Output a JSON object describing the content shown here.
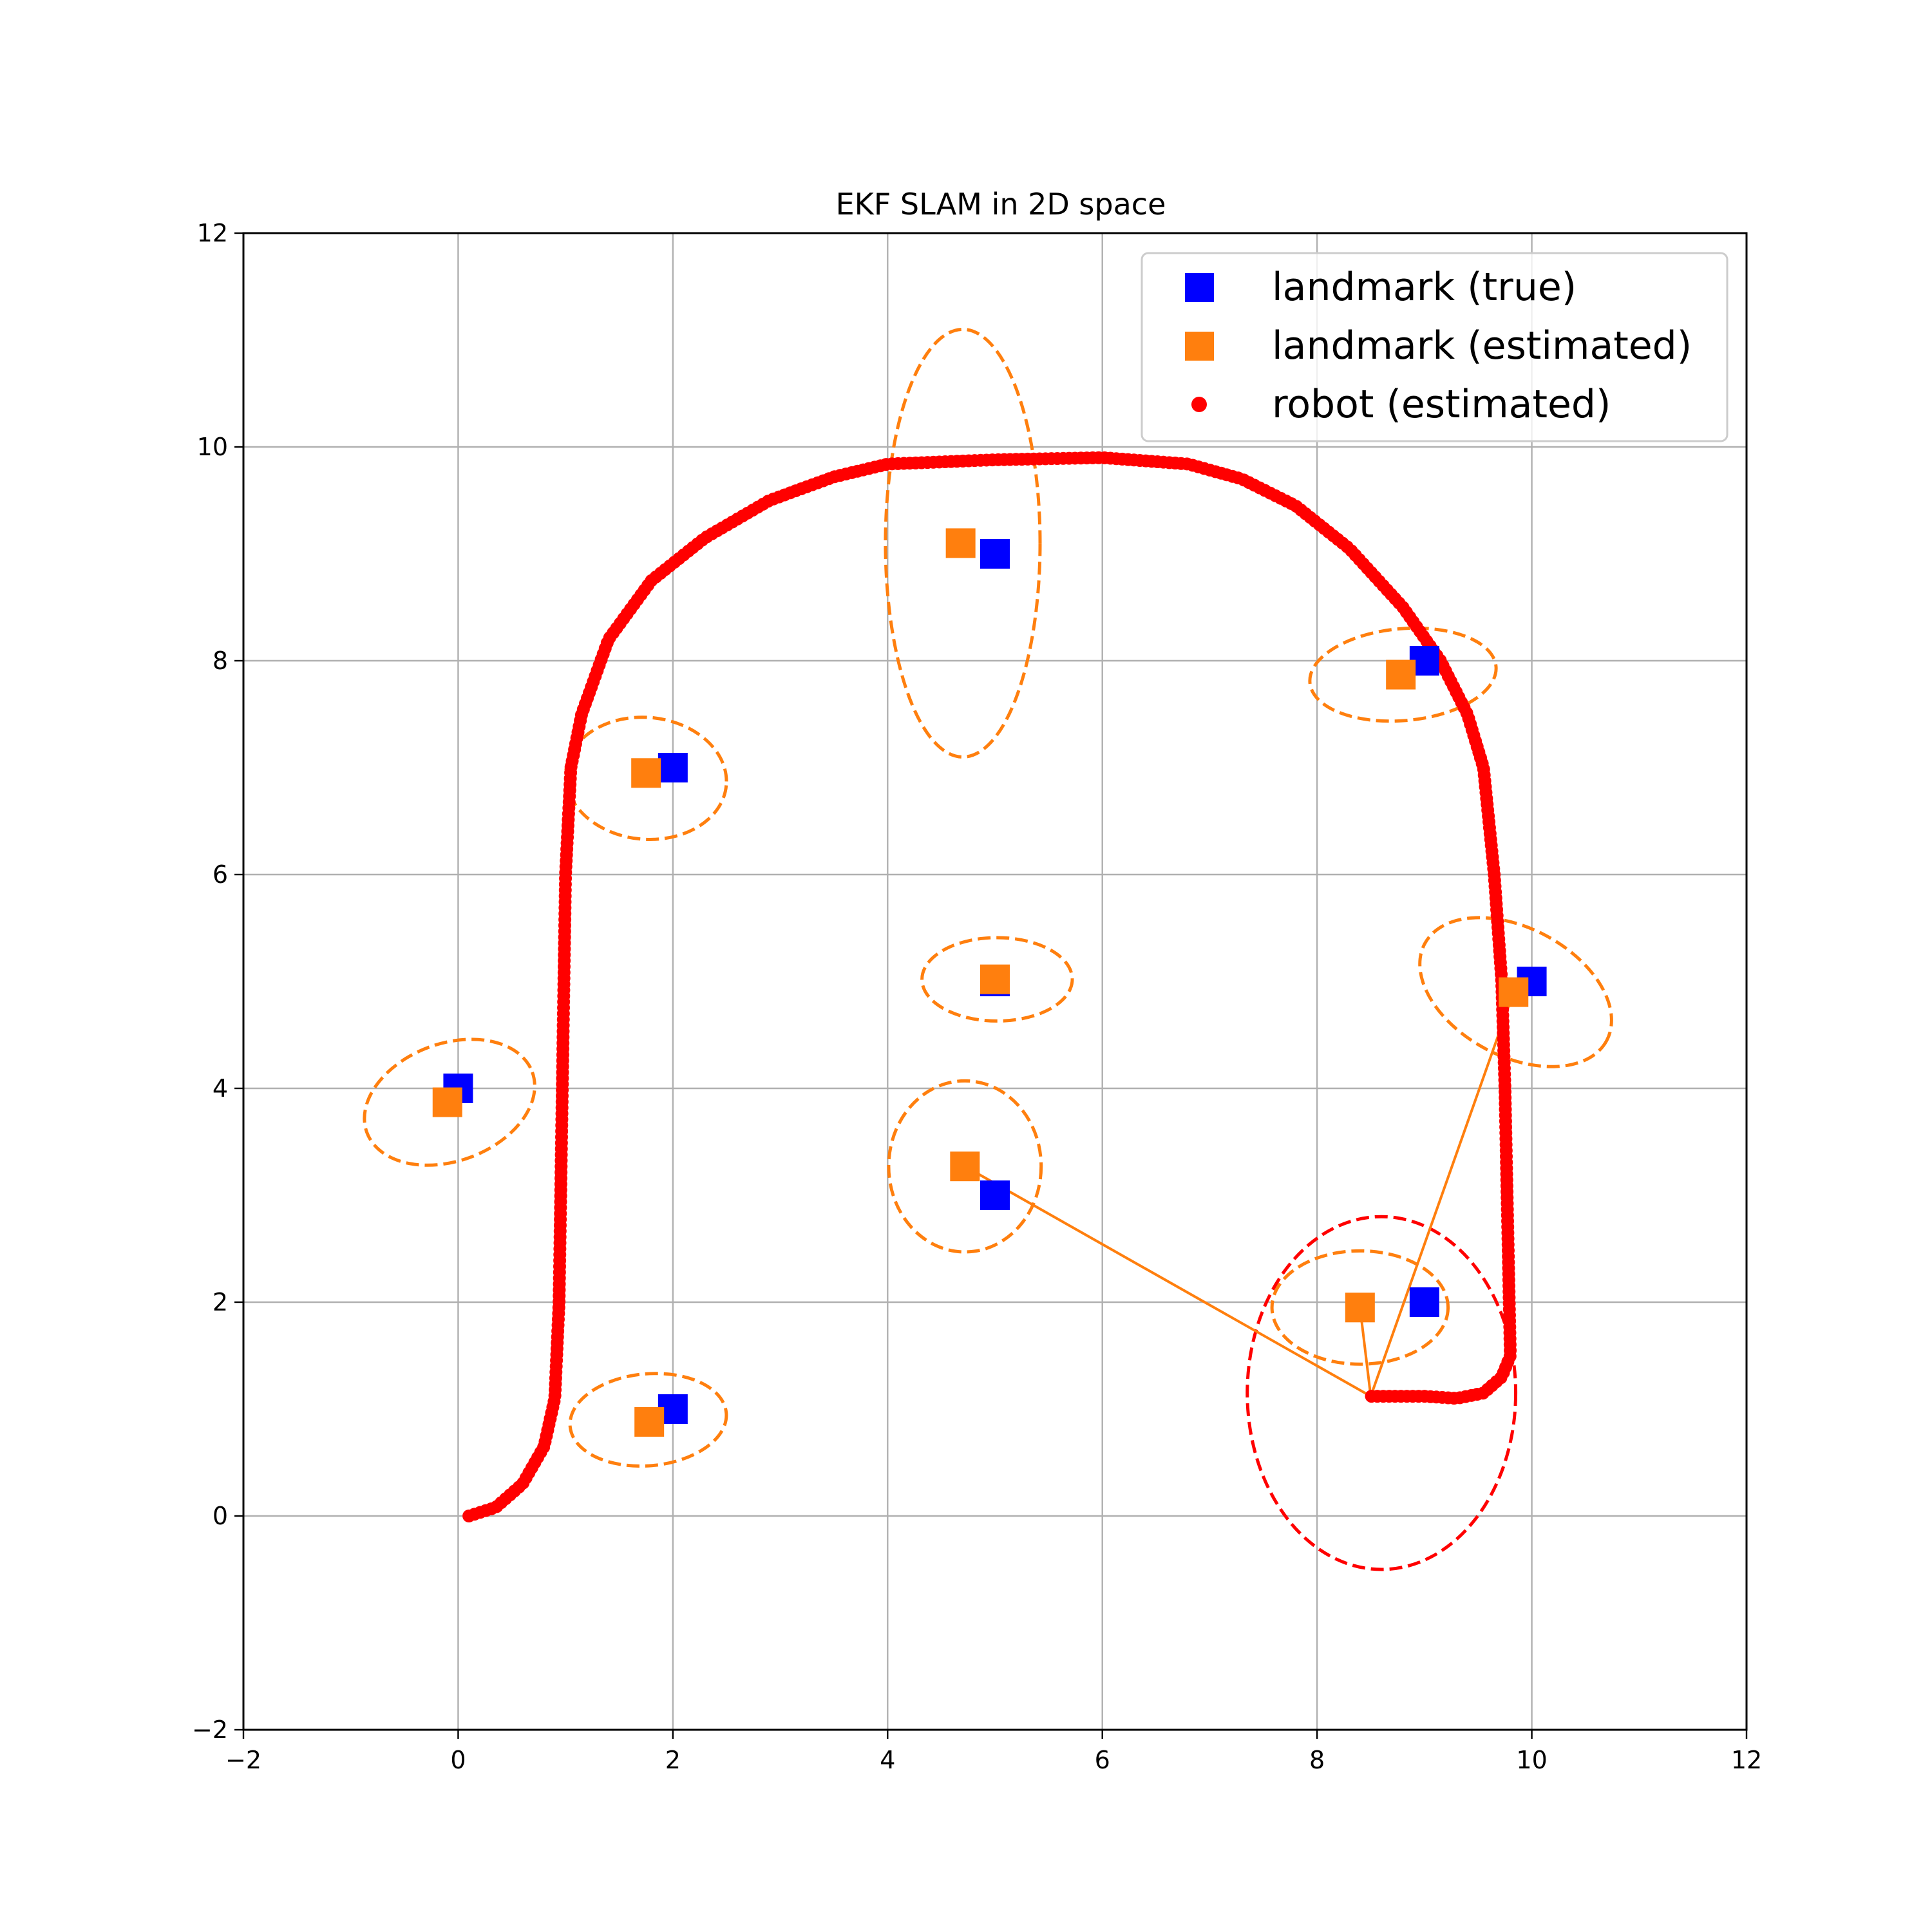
{
  "chart_data": {
    "type": "scatter",
    "title": "EKF SLAM in 2D space",
    "xlabel": "",
    "ylabel": "",
    "xlim": [
      -2,
      12
    ],
    "ylim": [
      -2,
      12
    ],
    "xticks": [
      -2,
      0,
      2,
      4,
      6,
      8,
      10,
      12
    ],
    "yticks": [
      -2,
      0,
      2,
      4,
      6,
      8,
      10,
      12
    ],
    "xtick_labels": [
      "−2",
      "0",
      "2",
      "4",
      "6",
      "8",
      "10",
      "12"
    ],
    "ytick_labels": [
      "−2",
      "0",
      "2",
      "4",
      "6",
      "8",
      "10",
      "12"
    ],
    "grid": true,
    "legend_position": "top-right",
    "colors": {
      "true": "#0000ff",
      "estimated": "#ff7f0e",
      "robot": "#ff0000",
      "grid": "#b0b0b0"
    },
    "legend": [
      {
        "label": "landmark (true)",
        "marker": "square",
        "color": "#0000ff"
      },
      {
        "label": "landmark (estimated)",
        "marker": "square",
        "color": "#ff7f0e"
      },
      {
        "label": "robot (estimated)",
        "marker": "circle",
        "color": "#ff0000"
      }
    ],
    "series": [
      {
        "name": "landmark (true)",
        "marker": "square",
        "points": [
          [
            0,
            4
          ],
          [
            2,
            7
          ],
          [
            2,
            1
          ],
          [
            5,
            9
          ],
          [
            5,
            5
          ],
          [
            5,
            3
          ],
          [
            9,
            8
          ],
          [
            10,
            5
          ],
          [
            9,
            2
          ]
        ]
      },
      {
        "name": "landmark (estimated)",
        "marker": "square",
        "points": [
          [
            -0.1,
            3.87
          ],
          [
            1.75,
            6.95
          ],
          [
            1.78,
            0.88
          ],
          [
            4.68,
            9.1
          ],
          [
            5.0,
            5.02
          ],
          [
            4.72,
            3.27
          ],
          [
            8.78,
            7.87
          ],
          [
            9.83,
            4.9
          ],
          [
            8.4,
            1.95
          ]
        ]
      },
      {
        "name": "robot (estimated)",
        "marker": "circle",
        "path_vertices": [
          [
            0.1,
            0.0
          ],
          [
            0.35,
            0.08
          ],
          [
            0.6,
            0.3
          ],
          [
            0.8,
            0.65
          ],
          [
            0.9,
            1.1
          ],
          [
            0.94,
            2.0
          ],
          [
            0.97,
            4.0
          ],
          [
            1.0,
            6.0
          ],
          [
            1.05,
            7.0
          ],
          [
            1.15,
            7.5
          ],
          [
            1.4,
            8.2
          ],
          [
            1.8,
            8.75
          ],
          [
            2.3,
            9.15
          ],
          [
            2.9,
            9.5
          ],
          [
            3.5,
            9.72
          ],
          [
            4.0,
            9.84
          ],
          [
            5.0,
            9.88
          ],
          [
            6.0,
            9.9
          ],
          [
            6.8,
            9.84
          ],
          [
            7.3,
            9.7
          ],
          [
            7.8,
            9.45
          ],
          [
            8.3,
            9.05
          ],
          [
            8.8,
            8.5
          ],
          [
            9.15,
            8.0
          ],
          [
            9.4,
            7.5
          ],
          [
            9.55,
            7.0
          ],
          [
            9.6,
            6.5
          ],
          [
            9.65,
            6.0
          ],
          [
            9.72,
            5.0
          ],
          [
            9.75,
            4.0
          ],
          [
            9.77,
            3.0
          ],
          [
            9.79,
            2.0
          ],
          [
            9.8,
            1.5
          ],
          [
            9.72,
            1.3
          ],
          [
            9.55,
            1.15
          ],
          [
            9.3,
            1.1
          ],
          [
            9.0,
            1.12
          ],
          [
            8.7,
            1.12
          ],
          [
            8.5,
            1.12
          ]
        ],
        "spacing": 0.055
      }
    ],
    "landmark_covariance_ellipses": [
      {
        "center": [
          -0.08,
          3.87
        ],
        "rx": 0.82,
        "ry": 0.55,
        "angle_deg": 20
      },
      {
        "center": [
          1.75,
          6.9
        ],
        "rx": 0.75,
        "ry": 0.57,
        "angle_deg": -5
      },
      {
        "center": [
          1.77,
          0.9
        ],
        "rx": 0.73,
        "ry": 0.43,
        "angle_deg": 5
      },
      {
        "center": [
          4.7,
          9.1
        ],
        "rx": 0.72,
        "ry": 2.0,
        "angle_deg": 0
      },
      {
        "center": [
          5.02,
          5.02
        ],
        "rx": 0.7,
        "ry": 0.39,
        "angle_deg": 0
      },
      {
        "center": [
          4.72,
          3.27
        ],
        "rx": 0.71,
        "ry": 0.8,
        "angle_deg": 0
      },
      {
        "center": [
          8.8,
          7.87
        ],
        "rx": 0.87,
        "ry": 0.43,
        "angle_deg": 5
      },
      {
        "center": [
          9.85,
          4.9
        ],
        "rx": 0.96,
        "ry": 0.6,
        "angle_deg": -28
      },
      {
        "center": [
          8.4,
          1.95
        ],
        "rx": 0.82,
        "ry": 0.53,
        "angle_deg": 0
      }
    ],
    "robot_covariance_ellipse": {
      "center": [
        8.6,
        1.15
      ],
      "rx": 1.25,
      "ry": 1.65,
      "angle_deg": 0
    },
    "observation_lines": [
      {
        "from": [
          8.5,
          1.12
        ],
        "to": [
          4.72,
          3.27
        ]
      },
      {
        "from": [
          8.5,
          1.12
        ],
        "to": [
          8.4,
          1.95
        ]
      },
      {
        "from": [
          8.5,
          1.12
        ],
        "to": [
          9.83,
          4.9
        ]
      }
    ]
  }
}
